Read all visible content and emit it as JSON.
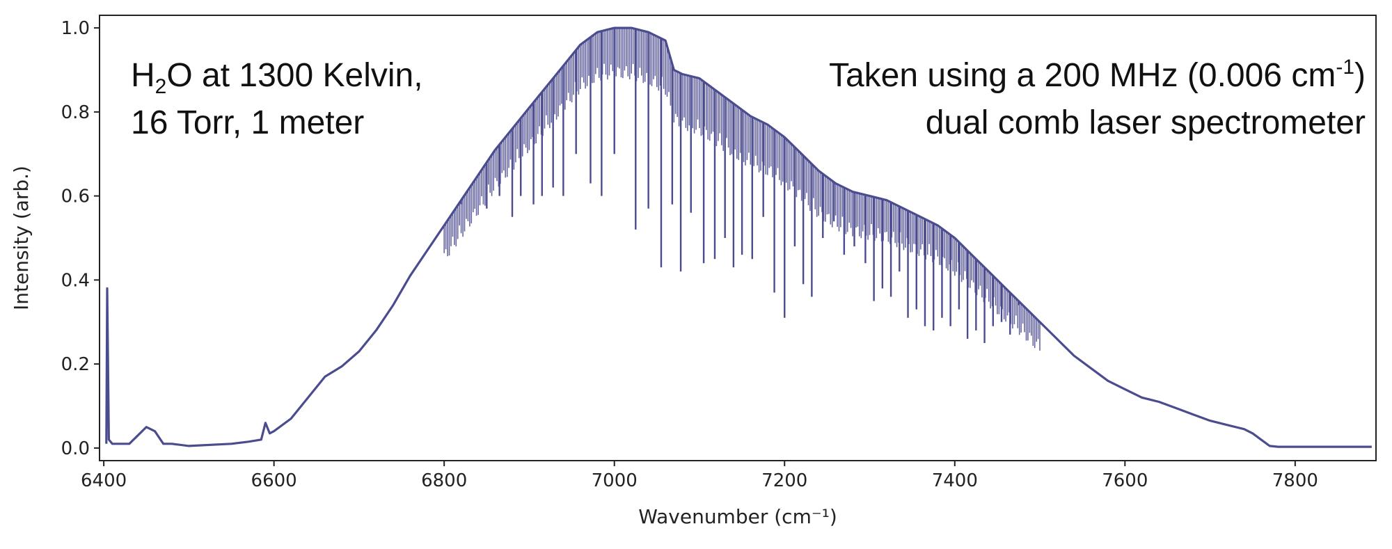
{
  "chart_data": {
    "type": "line",
    "title": "",
    "xlabel": "Wavenumber (cm⁻¹)",
    "ylabel": "Intensity (arb.)",
    "xlim": [
      6395,
      7895
    ],
    "ylim": [
      -0.03,
      1.03
    ],
    "xticks": [
      6400,
      6600,
      6800,
      7000,
      7200,
      7400,
      7600,
      7800
    ],
    "xtick_labels": [
      "6400",
      "6600",
      "6800",
      "7000",
      "7200",
      "7400",
      "7600",
      "7800"
    ],
    "yticks": [
      0.0,
      0.2,
      0.4,
      0.6,
      0.8,
      1.0
    ],
    "ytick_labels": [
      "0.0",
      "0.2",
      "0.4",
      "0.6",
      "0.8",
      "1.0"
    ],
    "grid": false,
    "series": [
      {
        "color": "#4b4b8f",
        "envelope": {
          "x": [
            6403,
            6404,
            6406,
            6410,
            6430,
            6440,
            6450,
            6460,
            6470,
            6480,
            6500,
            6550,
            6570,
            6585,
            6590,
            6595,
            6600,
            6620,
            6640,
            6660,
            6680,
            6700,
            6720,
            6740,
            6760,
            6780,
            6800,
            6820,
            6840,
            6860,
            6880,
            6900,
            6920,
            6940,
            6960,
            6980,
            7000,
            7020,
            7040,
            7060,
            7070,
            7080,
            7100,
            7120,
            7140,
            7160,
            7180,
            7200,
            7220,
            7240,
            7260,
            7280,
            7300,
            7320,
            7340,
            7360,
            7380,
            7400,
            7420,
            7440,
            7460,
            7480,
            7500,
            7520,
            7540,
            7560,
            7580,
            7600,
            7620,
            7640,
            7660,
            7680,
            7700,
            7720,
            7740,
            7750,
            7760,
            7770,
            7780,
            7800,
            7850,
            7890
          ],
          "y": [
            0.01,
            0.38,
            0.02,
            0.01,
            0.01,
            0.03,
            0.05,
            0.04,
            0.01,
            0.01,
            0.005,
            0.01,
            0.015,
            0.02,
            0.06,
            0.035,
            0.04,
            0.07,
            0.12,
            0.17,
            0.195,
            0.23,
            0.28,
            0.34,
            0.41,
            0.47,
            0.53,
            0.59,
            0.65,
            0.71,
            0.76,
            0.81,
            0.86,
            0.91,
            0.96,
            0.99,
            1.0,
            1.0,
            0.99,
            0.97,
            0.9,
            0.89,
            0.88,
            0.85,
            0.82,
            0.79,
            0.77,
            0.74,
            0.7,
            0.66,
            0.63,
            0.61,
            0.6,
            0.59,
            0.57,
            0.55,
            0.53,
            0.5,
            0.46,
            0.42,
            0.38,
            0.34,
            0.3,
            0.26,
            0.22,
            0.19,
            0.16,
            0.14,
            0.12,
            0.11,
            0.095,
            0.08,
            0.065,
            0.055,
            0.045,
            0.035,
            0.02,
            0.005,
            0.003,
            0.003,
            0.003,
            0.003
          ]
        },
        "absorption_lines": {
          "x": [
            6820,
            6850,
            6865,
            6880,
            6890,
            6905,
            6915,
            6928,
            6940,
            6955,
            6972,
            6985,
            7000,
            7025,
            7040,
            7055,
            7068,
            7078,
            7090,
            7105,
            7118,
            7130,
            7140,
            7150,
            7162,
            7175,
            7188,
            7200,
            7212,
            7222,
            7232,
            7245,
            7258,
            7270,
            7282,
            7295,
            7305,
            7315,
            7325,
            7335,
            7345,
            7355,
            7365,
            7375,
            7385,
            7395,
            7405,
            7415,
            7425,
            7435,
            7445,
            7455,
            7465,
            7475
          ],
          "y": [
            0.58,
            0.57,
            0.6,
            0.55,
            0.6,
            0.58,
            0.6,
            0.62,
            0.6,
            0.7,
            0.63,
            0.6,
            0.7,
            0.52,
            0.57,
            0.43,
            0.58,
            0.42,
            0.56,
            0.44,
            0.45,
            0.5,
            0.43,
            0.46,
            0.45,
            0.55,
            0.37,
            0.31,
            0.48,
            0.39,
            0.36,
            0.5,
            0.54,
            0.46,
            0.48,
            0.44,
            0.35,
            0.38,
            0.36,
            0.42,
            0.31,
            0.33,
            0.29,
            0.28,
            0.31,
            0.29,
            0.33,
            0.26,
            0.28,
            0.25,
            0.29,
            0.3,
            0.27,
            0.34
          ]
        }
      }
    ]
  },
  "annotations": {
    "left_line1_pre": "H",
    "left_line1_sub": "2",
    "left_line1_post": "O at 1300 Kelvin,",
    "left_line2": "16 Torr, 1 meter",
    "right_line1_pre": "Taken using a 200 MHz (0.006 cm",
    "right_line1_sup": "-1",
    "right_line1_post": ")",
    "right_line2": "dual comb laser spectrometer"
  }
}
